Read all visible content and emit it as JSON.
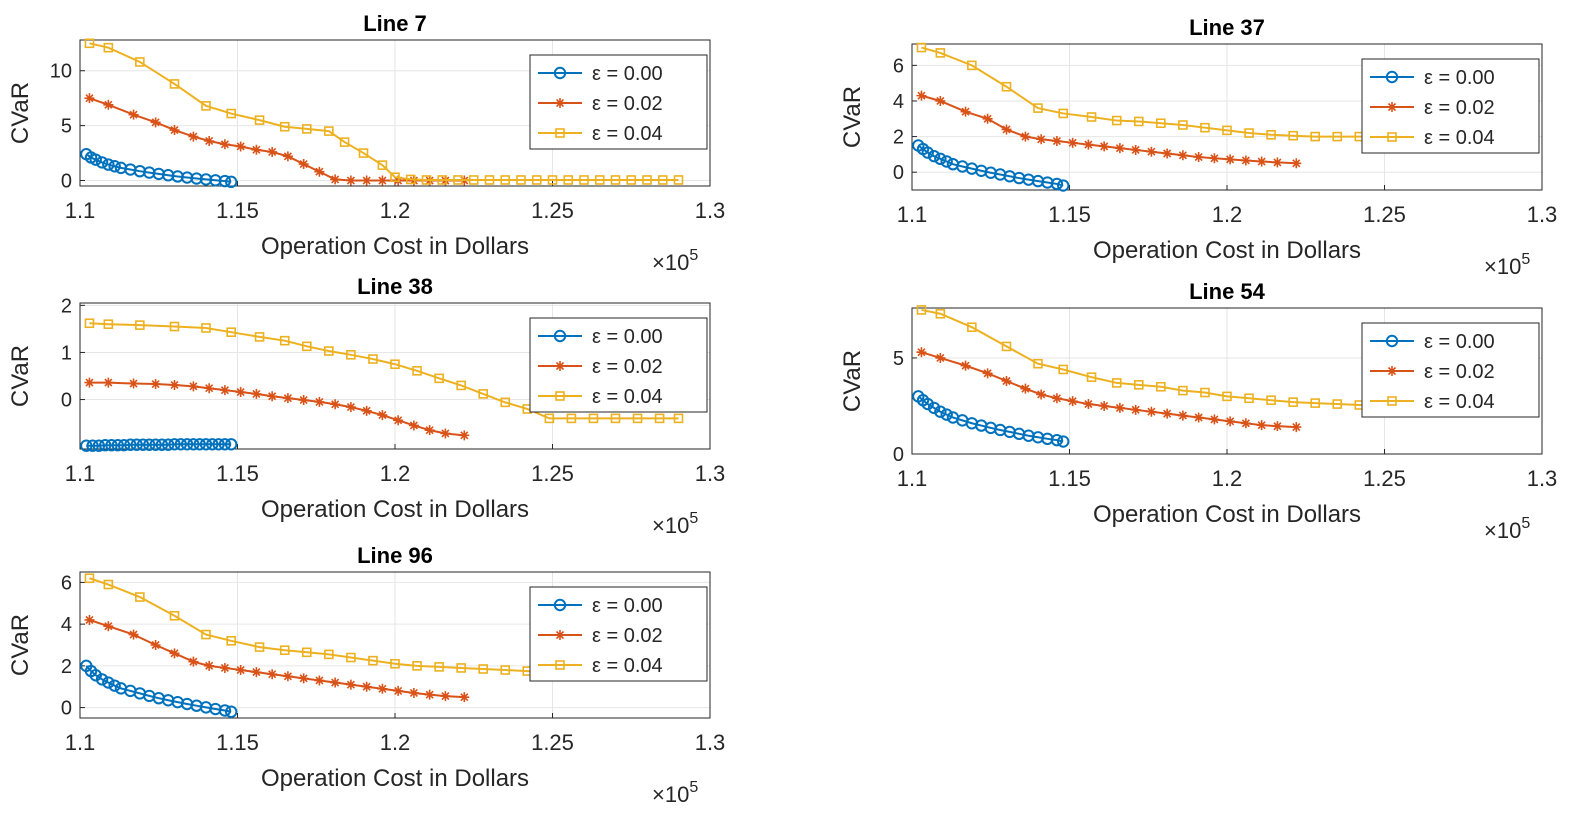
{
  "figure": {
    "background": "#ffffff"
  },
  "chart_data": [
    {
      "type": "line",
      "title": "Line 7",
      "xlabel": "Operation Cost in Dollars",
      "ylabel": "CVaR",
      "x_exponent_label": "×10",
      "x_exponent": "5",
      "xlim": [
        1.1,
        1.3
      ],
      "ylim": [
        -0.5,
        12.8
      ],
      "xticks": [
        "1.1",
        "1.15",
        "1.2",
        "1.25",
        "1.3"
      ],
      "yticks": [
        "0",
        "5",
        "10"
      ],
      "grid": true,
      "legend_placement": "top-right",
      "series": [
        {
          "name": "ε  = 0.00",
          "color": "#0072BD",
          "marker": "circle",
          "x": [
            1.102,
            1.1035,
            1.105,
            1.107,
            1.109,
            1.111,
            1.113,
            1.116,
            1.119,
            1.122,
            1.125,
            1.128,
            1.131,
            1.134,
            1.137,
            1.14,
            1.143,
            1.146,
            1.148
          ],
          "y": [
            2.4,
            2.1,
            1.9,
            1.65,
            1.45,
            1.3,
            1.15,
            1.0,
            0.85,
            0.72,
            0.6,
            0.48,
            0.37,
            0.27,
            0.18,
            0.1,
            0.02,
            -0.05,
            -0.12
          ]
        },
        {
          "name": "ε  = 0.02",
          "color": "#D95319",
          "marker": "asterisk",
          "x": [
            1.103,
            1.109,
            1.117,
            1.124,
            1.13,
            1.136,
            1.141,
            1.146,
            1.151,
            1.156,
            1.161,
            1.166,
            1.171,
            1.176,
            1.181,
            1.186,
            1.191,
            1.196,
            1.201,
            1.206,
            1.211,
            1.216,
            1.222
          ],
          "y": [
            7.5,
            6.9,
            6.0,
            5.3,
            4.6,
            4.0,
            3.6,
            3.3,
            3.1,
            2.8,
            2.6,
            2.2,
            1.5,
            0.8,
            0.1,
            0.0,
            0.0,
            0.0,
            0.0,
            0.0,
            0.0,
            0.0,
            0.0
          ]
        },
        {
          "name": "ε  = 0.04",
          "color": "#EDB120",
          "marker": "square",
          "x": [
            1.103,
            1.109,
            1.119,
            1.13,
            1.14,
            1.148,
            1.157,
            1.165,
            1.172,
            1.179,
            1.184,
            1.19,
            1.196,
            1.2,
            1.205,
            1.21,
            1.215,
            1.22,
            1.225,
            1.23,
            1.235,
            1.24,
            1.245,
            1.25,
            1.255,
            1.26,
            1.265,
            1.27,
            1.275,
            1.28,
            1.285,
            1.29
          ],
          "y": [
            12.5,
            12.1,
            10.8,
            8.8,
            6.8,
            6.1,
            5.5,
            4.9,
            4.7,
            4.5,
            3.5,
            2.5,
            1.4,
            0.3,
            0.1,
            0.05,
            0.05,
            0.05,
            0.05,
            0.05,
            0.05,
            0.05,
            0.05,
            0.05,
            0.05,
            0.05,
            0.05,
            0.05,
            0.05,
            0.05,
            0.05,
            0.05
          ]
        }
      ]
    },
    {
      "type": "line",
      "title": "Line 37",
      "xlabel": "Operation Cost in Dollars",
      "ylabel": "CVaR",
      "x_exponent_label": "×10",
      "x_exponent": "5",
      "xlim": [
        1.1,
        1.3
      ],
      "ylim": [
        -1.0,
        7.2
      ],
      "xticks": [
        "1.1",
        "1.15",
        "1.2",
        "1.25",
        "1.3"
      ],
      "yticks": [
        "0",
        "2",
        "4",
        "6"
      ],
      "grid": true,
      "legend_placement": "top-right",
      "series": [
        {
          "name": "ε  = 0.00",
          "color": "#0072BD",
          "marker": "circle",
          "x": [
            1.102,
            1.1035,
            1.105,
            1.107,
            1.109,
            1.111,
            1.113,
            1.116,
            1.119,
            1.122,
            1.125,
            1.128,
            1.131,
            1.134,
            1.137,
            1.14,
            1.143,
            1.146,
            1.148
          ],
          "y": [
            1.5,
            1.3,
            1.1,
            0.9,
            0.75,
            0.6,
            0.45,
            0.32,
            0.2,
            0.08,
            -0.03,
            -0.13,
            -0.23,
            -0.33,
            -0.42,
            -0.5,
            -0.58,
            -0.66,
            -0.75
          ]
        },
        {
          "name": "ε  = 0.02",
          "color": "#D95319",
          "marker": "asterisk",
          "x": [
            1.103,
            1.109,
            1.117,
            1.124,
            1.13,
            1.136,
            1.141,
            1.146,
            1.151,
            1.156,
            1.161,
            1.166,
            1.171,
            1.176,
            1.181,
            1.186,
            1.191,
            1.196,
            1.201,
            1.206,
            1.211,
            1.216,
            1.222
          ],
          "y": [
            4.3,
            4.0,
            3.4,
            3.0,
            2.4,
            2.0,
            1.85,
            1.75,
            1.65,
            1.55,
            1.45,
            1.35,
            1.25,
            1.15,
            1.05,
            0.95,
            0.85,
            0.78,
            0.72,
            0.66,
            0.6,
            0.55,
            0.5
          ]
        },
        {
          "name": "ε  = 0.04",
          "color": "#EDB120",
          "marker": "square",
          "x": [
            1.103,
            1.109,
            1.119,
            1.13,
            1.14,
            1.148,
            1.157,
            1.165,
            1.172,
            1.179,
            1.186,
            1.193,
            1.2,
            1.207,
            1.214,
            1.221,
            1.228,
            1.235,
            1.242,
            1.249
          ],
          "y": [
            7.0,
            6.7,
            6.0,
            4.8,
            3.6,
            3.3,
            3.1,
            2.9,
            2.85,
            2.75,
            2.65,
            2.5,
            2.35,
            2.2,
            2.1,
            2.05,
            2.0,
            2.0,
            2.0,
            2.0
          ]
        }
      ]
    },
    {
      "type": "line",
      "title": "Line 38",
      "xlabel": "Operation Cost in Dollars",
      "ylabel": "CVaR",
      "x_exponent_label": "×10",
      "x_exponent": "5",
      "xlim": [
        1.1,
        1.3
      ],
      "ylim": [
        -1.05,
        2.05
      ],
      "xticks": [
        "1.1",
        "1.15",
        "1.2",
        "1.25",
        "1.3"
      ],
      "yticks": [
        "0",
        "1",
        "2"
      ],
      "grid": true,
      "legend_placement": "top-right",
      "series": [
        {
          "name": "ε  = 0.00",
          "color": "#0072BD",
          "marker": "circle",
          "x": [
            1.102,
            1.104,
            1.106,
            1.108,
            1.11,
            1.112,
            1.114,
            1.116,
            1.118,
            1.12,
            1.122,
            1.124,
            1.126,
            1.128,
            1.13,
            1.132,
            1.134,
            1.136,
            1.138,
            1.14,
            1.142,
            1.144,
            1.146,
            1.148
          ],
          "y": [
            -0.98,
            -0.98,
            -0.98,
            -0.97,
            -0.97,
            -0.97,
            -0.97,
            -0.96,
            -0.96,
            -0.96,
            -0.96,
            -0.96,
            -0.96,
            -0.96,
            -0.95,
            -0.95,
            -0.95,
            -0.95,
            -0.95,
            -0.95,
            -0.95,
            -0.95,
            -0.95,
            -0.95
          ]
        },
        {
          "name": "ε  = 0.02",
          "color": "#D95319",
          "marker": "asterisk",
          "x": [
            1.103,
            1.109,
            1.117,
            1.124,
            1.13,
            1.136,
            1.141,
            1.146,
            1.151,
            1.156,
            1.161,
            1.166,
            1.171,
            1.176,
            1.181,
            1.186,
            1.191,
            1.196,
            1.201,
            1.206,
            1.211,
            1.216,
            1.222
          ],
          "y": [
            0.36,
            0.36,
            0.34,
            0.33,
            0.31,
            0.28,
            0.24,
            0.2,
            0.16,
            0.12,
            0.07,
            0.03,
            -0.01,
            -0.05,
            -0.1,
            -0.16,
            -0.24,
            -0.33,
            -0.44,
            -0.55,
            -0.65,
            -0.72,
            -0.76
          ]
        },
        {
          "name": "ε  = 0.04",
          "color": "#EDB120",
          "marker": "square",
          "x": [
            1.103,
            1.109,
            1.119,
            1.13,
            1.14,
            1.148,
            1.157,
            1.165,
            1.172,
            1.179,
            1.186,
            1.193,
            1.2,
            1.207,
            1.214,
            1.221,
            1.228,
            1.235,
            1.242,
            1.249,
            1.256,
            1.263,
            1.27,
            1.277,
            1.284,
            1.29
          ],
          "y": [
            1.62,
            1.6,
            1.58,
            1.55,
            1.52,
            1.43,
            1.33,
            1.25,
            1.13,
            1.03,
            0.95,
            0.86,
            0.75,
            0.61,
            0.45,
            0.3,
            0.12,
            -0.06,
            -0.2,
            -0.4,
            -0.4,
            -0.4,
            -0.4,
            -0.4,
            -0.4,
            -0.4
          ]
        }
      ]
    },
    {
      "type": "line",
      "title": "Line 54",
      "xlabel": "Operation Cost in Dollars",
      "ylabel": "CVaR",
      "x_exponent_label": "×10",
      "x_exponent": "5",
      "xlim": [
        1.1,
        1.3
      ],
      "ylim": [
        0,
        7.6
      ],
      "xticks": [
        "1.1",
        "1.15",
        "1.2",
        "1.25",
        "1.3"
      ],
      "yticks": [
        "0",
        "5"
      ],
      "grid": true,
      "legend_placement": "top-right",
      "series": [
        {
          "name": "ε  = 0.00",
          "color": "#0072BD",
          "marker": "circle",
          "x": [
            1.102,
            1.1035,
            1.105,
            1.107,
            1.109,
            1.111,
            1.113,
            1.116,
            1.119,
            1.122,
            1.125,
            1.128,
            1.131,
            1.134,
            1.137,
            1.14,
            1.143,
            1.146,
            1.148
          ],
          "y": [
            3.0,
            2.8,
            2.6,
            2.4,
            2.2,
            2.05,
            1.9,
            1.75,
            1.6,
            1.48,
            1.36,
            1.25,
            1.15,
            1.05,
            0.95,
            0.87,
            0.79,
            0.72,
            0.65
          ]
        },
        {
          "name": "ε  = 0.02",
          "color": "#D95319",
          "marker": "asterisk",
          "x": [
            1.103,
            1.109,
            1.117,
            1.124,
            1.13,
            1.136,
            1.141,
            1.146,
            1.151,
            1.156,
            1.161,
            1.166,
            1.171,
            1.176,
            1.181,
            1.186,
            1.191,
            1.196,
            1.201,
            1.206,
            1.211,
            1.216,
            1.222
          ],
          "y": [
            5.3,
            5.0,
            4.6,
            4.2,
            3.8,
            3.4,
            3.1,
            2.9,
            2.75,
            2.6,
            2.5,
            2.4,
            2.3,
            2.2,
            2.1,
            2.0,
            1.9,
            1.8,
            1.7,
            1.6,
            1.5,
            1.45,
            1.4
          ]
        },
        {
          "name": "ε  = 0.04",
          "color": "#EDB120",
          "marker": "square",
          "x": [
            1.103,
            1.109,
            1.119,
            1.13,
            1.14,
            1.148,
            1.157,
            1.165,
            1.172,
            1.179,
            1.186,
            1.193,
            1.2,
            1.207,
            1.214,
            1.221,
            1.228,
            1.235,
            1.242,
            1.249
          ],
          "y": [
            7.5,
            7.3,
            6.6,
            5.6,
            4.7,
            4.4,
            4.0,
            3.7,
            3.6,
            3.5,
            3.3,
            3.2,
            3.0,
            2.9,
            2.8,
            2.7,
            2.65,
            2.6,
            2.55,
            2.5
          ]
        }
      ]
    },
    {
      "type": "line",
      "title": "Line 96",
      "xlabel": "Operation Cost in Dollars",
      "ylabel": "CVaR",
      "x_exponent_label": "×10",
      "x_exponent": "5",
      "xlim": [
        1.1,
        1.3
      ],
      "ylim": [
        -0.5,
        6.5
      ],
      "xticks": [
        "1.1",
        "1.15",
        "1.2",
        "1.25",
        "1.3"
      ],
      "yticks": [
        "0",
        "2",
        "4",
        "6"
      ],
      "grid": true,
      "legend_placement": "top-right",
      "series": [
        {
          "name": "ε  = 0.00",
          "color": "#0072BD",
          "marker": "circle",
          "x": [
            1.102,
            1.1035,
            1.105,
            1.107,
            1.109,
            1.111,
            1.113,
            1.116,
            1.119,
            1.122,
            1.125,
            1.128,
            1.131,
            1.134,
            1.137,
            1.14,
            1.143,
            1.146,
            1.148
          ],
          "y": [
            2.0,
            1.75,
            1.55,
            1.35,
            1.2,
            1.05,
            0.92,
            0.8,
            0.68,
            0.56,
            0.45,
            0.35,
            0.26,
            0.17,
            0.09,
            0.01,
            -0.07,
            -0.14,
            -0.2
          ]
        },
        {
          "name": "ε  = 0.02",
          "color": "#D95319",
          "marker": "asterisk",
          "x": [
            1.103,
            1.109,
            1.117,
            1.124,
            1.13,
            1.136,
            1.141,
            1.146,
            1.151,
            1.156,
            1.161,
            1.166,
            1.171,
            1.176,
            1.181,
            1.186,
            1.191,
            1.196,
            1.201,
            1.206,
            1.211,
            1.216,
            1.222
          ],
          "y": [
            4.2,
            3.9,
            3.5,
            3.0,
            2.6,
            2.2,
            2.0,
            1.9,
            1.8,
            1.7,
            1.6,
            1.5,
            1.4,
            1.3,
            1.2,
            1.1,
            1.0,
            0.9,
            0.8,
            0.7,
            0.62,
            0.55,
            0.5
          ]
        },
        {
          "name": "ε  = 0.04",
          "color": "#EDB120",
          "marker": "square",
          "x": [
            1.103,
            1.109,
            1.119,
            1.13,
            1.14,
            1.148,
            1.157,
            1.165,
            1.172,
            1.179,
            1.186,
            1.193,
            1.2,
            1.207,
            1.214,
            1.221,
            1.228,
            1.235,
            1.242,
            1.249
          ],
          "y": [
            6.2,
            5.9,
            5.3,
            4.4,
            3.5,
            3.2,
            2.9,
            2.75,
            2.65,
            2.55,
            2.4,
            2.25,
            2.1,
            2.0,
            1.95,
            1.9,
            1.85,
            1.8,
            1.75,
            1.7
          ]
        }
      ]
    }
  ]
}
